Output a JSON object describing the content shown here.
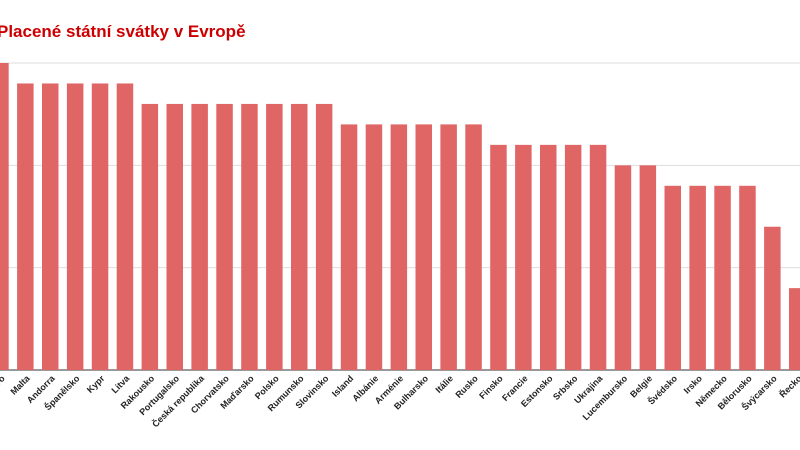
{
  "colors": {
    "bar": "#e06666",
    "title": "#cc0000",
    "grid": "#dddddd",
    "axis": "#333333"
  },
  "chart_data": {
    "type": "bar",
    "title": "Placené státní svátky v Evropě",
    "xlabel": "",
    "ylabel": "",
    "grid": true,
    "legend": "none",
    "ylim": [
      0,
      15
    ],
    "categories": [
      "Kosovo",
      "Malta",
      "Andorra",
      "Španělsko",
      "Kypr",
      "Litva",
      "Rakousko",
      "Portugalsko",
      "Česká republika",
      "Chorvatsko",
      "Maďarsko",
      "Polsko",
      "Rumunsko",
      "Slovinsko",
      "Island",
      "Albánie",
      "Arménie",
      "Bulharsko",
      "Itálie",
      "Rusko",
      "Finsko",
      "Francie",
      "Estonsko",
      "Srbsko",
      "Ukrajina",
      "Lucembursko",
      "Belgie",
      "Švédsko",
      "Irsko",
      "Německo",
      "Bělorusko",
      "Švýcarsko",
      "Řecko"
    ],
    "values": [
      15,
      14,
      14,
      14,
      14,
      14,
      13,
      13,
      13,
      13,
      13,
      13,
      13,
      13,
      12,
      12,
      12,
      12,
      12,
      12,
      11,
      11,
      11,
      11,
      11,
      10,
      10,
      9,
      9,
      9,
      9,
      7,
      4
    ]
  }
}
